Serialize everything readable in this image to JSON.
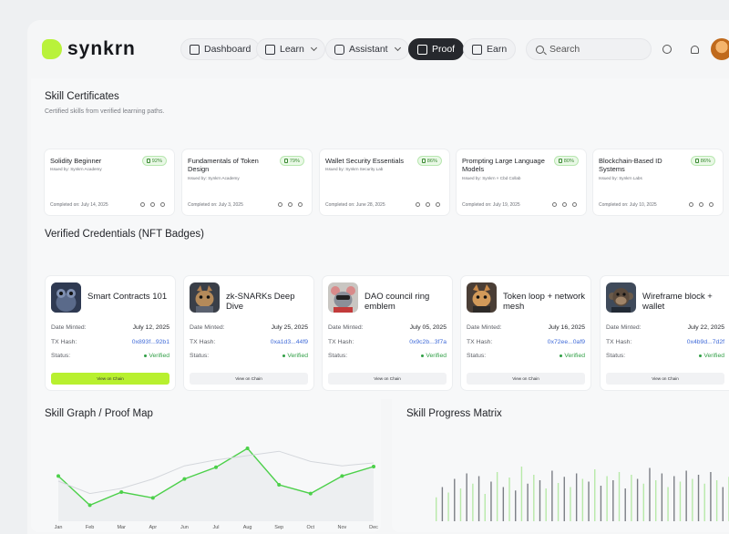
{
  "header": {
    "logo_text": "synkrn",
    "nav": [
      {
        "label": "Dashboard",
        "icon": "home-icon"
      },
      {
        "label": "Learn",
        "icon": "book-icon"
      },
      {
        "label": "Assistant",
        "icon": "robot-icon"
      },
      {
        "label": "Proof",
        "icon": "document-icon"
      },
      {
        "label": "Earn",
        "icon": "wallet-icon"
      }
    ],
    "search_placeholder": "Search"
  },
  "certificates": {
    "title": "Skill Certificates",
    "subtitle": "Certified skills from verified learning paths.",
    "items": [
      {
        "name": "Solidity Beginner",
        "issuer": "Issued by: Synkrn Academy",
        "score": "92%",
        "completed": "Completed on: July 14, 2025"
      },
      {
        "name": "Fundamentals of Token Design",
        "issuer": "Issued by: Synkrn Academy",
        "score": "79%",
        "completed": "Completed on: July 3, 2025"
      },
      {
        "name": "Wallet Security Essentials",
        "issuer": "Issued by: Synkrn Security Lab",
        "score": "86%",
        "completed": "Completed on: June 28, 2025"
      },
      {
        "name": "Prompting Large Language Models",
        "issuer": "Issued by: Synkrn × Cbd Collab",
        "score": "80%",
        "completed": "Completed on: July 19, 2025"
      },
      {
        "name": "Blockchain-Based ID Systems",
        "issuer": "Issued by: Synkrn Labs",
        "score": "86%",
        "completed": "Completed on: July 10, 2025"
      }
    ]
  },
  "credentials": {
    "title": "Verified Credentials (NFT Badges)",
    "labels": {
      "minted": "Date Minted:",
      "hash": "TX Hash:",
      "status": "Status:"
    },
    "items": [
      {
        "title": "Smart Contracts 101",
        "minted": "July 12, 2025",
        "hash": "0x893f...92b1",
        "status": "Verified",
        "button": "View on Chain"
      },
      {
        "title": "zk-SNARKs Deep Dive",
        "minted": "July 25, 2025",
        "hash": "0xa1d3...44f9",
        "status": "Verified",
        "button": "View on Chain"
      },
      {
        "title": "DAO council ring emblem",
        "minted": "July 05, 2025",
        "hash": "0x9c2b...3f7a",
        "status": "Verified",
        "button": "View on Chain"
      },
      {
        "title": "Token loop + network mesh",
        "minted": "July 16, 2025",
        "hash": "0x72ee...0af9",
        "status": "Verified",
        "button": "View on Chain"
      },
      {
        "title": "Wireframe block + wallet",
        "minted": "July 22, 2025",
        "hash": "0x4b9d...7d2f",
        "status": "Verified",
        "button": "View on Chain"
      }
    ]
  },
  "chart_data": [
    {
      "type": "line",
      "title": "Skill Graph / Proof Map",
      "categories": [
        "Jan",
        "Feb",
        "Mar",
        "Apr",
        "Jun",
        "Jul",
        "Aug",
        "Sep",
        "Oct",
        "Nov",
        "Dec"
      ],
      "series": [
        {
          "values": [
            0.62,
            0.22,
            0.4,
            0.32,
            0.58,
            0.74,
            1.0,
            0.5,
            0.38,
            0.62,
            0.75
          ]
        },
        {
          "values": [
            0.55,
            0.38,
            0.45,
            0.58,
            0.76,
            0.84,
            0.9,
            0.96,
            0.82,
            0.76,
            0.8
          ]
        }
      ],
      "colors": [
        "#4cd04a",
        "#d4d7dc"
      ]
    },
    {
      "type": "bar",
      "title": "Skill Progress Matrix",
      "values": [
        0.35,
        0.5,
        0.42,
        0.62,
        0.48,
        0.7,
        0.55,
        0.66,
        0.4,
        0.58,
        0.72,
        0.5,
        0.64,
        0.45,
        0.8,
        0.55,
        0.68,
        0.6,
        0.48,
        0.74,
        0.56,
        0.65,
        0.5,
        0.7,
        0.62,
        0.58,
        0.76,
        0.52,
        0.66,
        0.6,
        0.72,
        0.48,
        0.68,
        0.62,
        0.55,
        0.78,
        0.6,
        0.7,
        0.5,
        0.66,
        0.58,
        0.74,
        0.62,
        0.68,
        0.55,
        0.72,
        0.6,
        0.5,
        0.65,
        0.7
      ]
    }
  ]
}
